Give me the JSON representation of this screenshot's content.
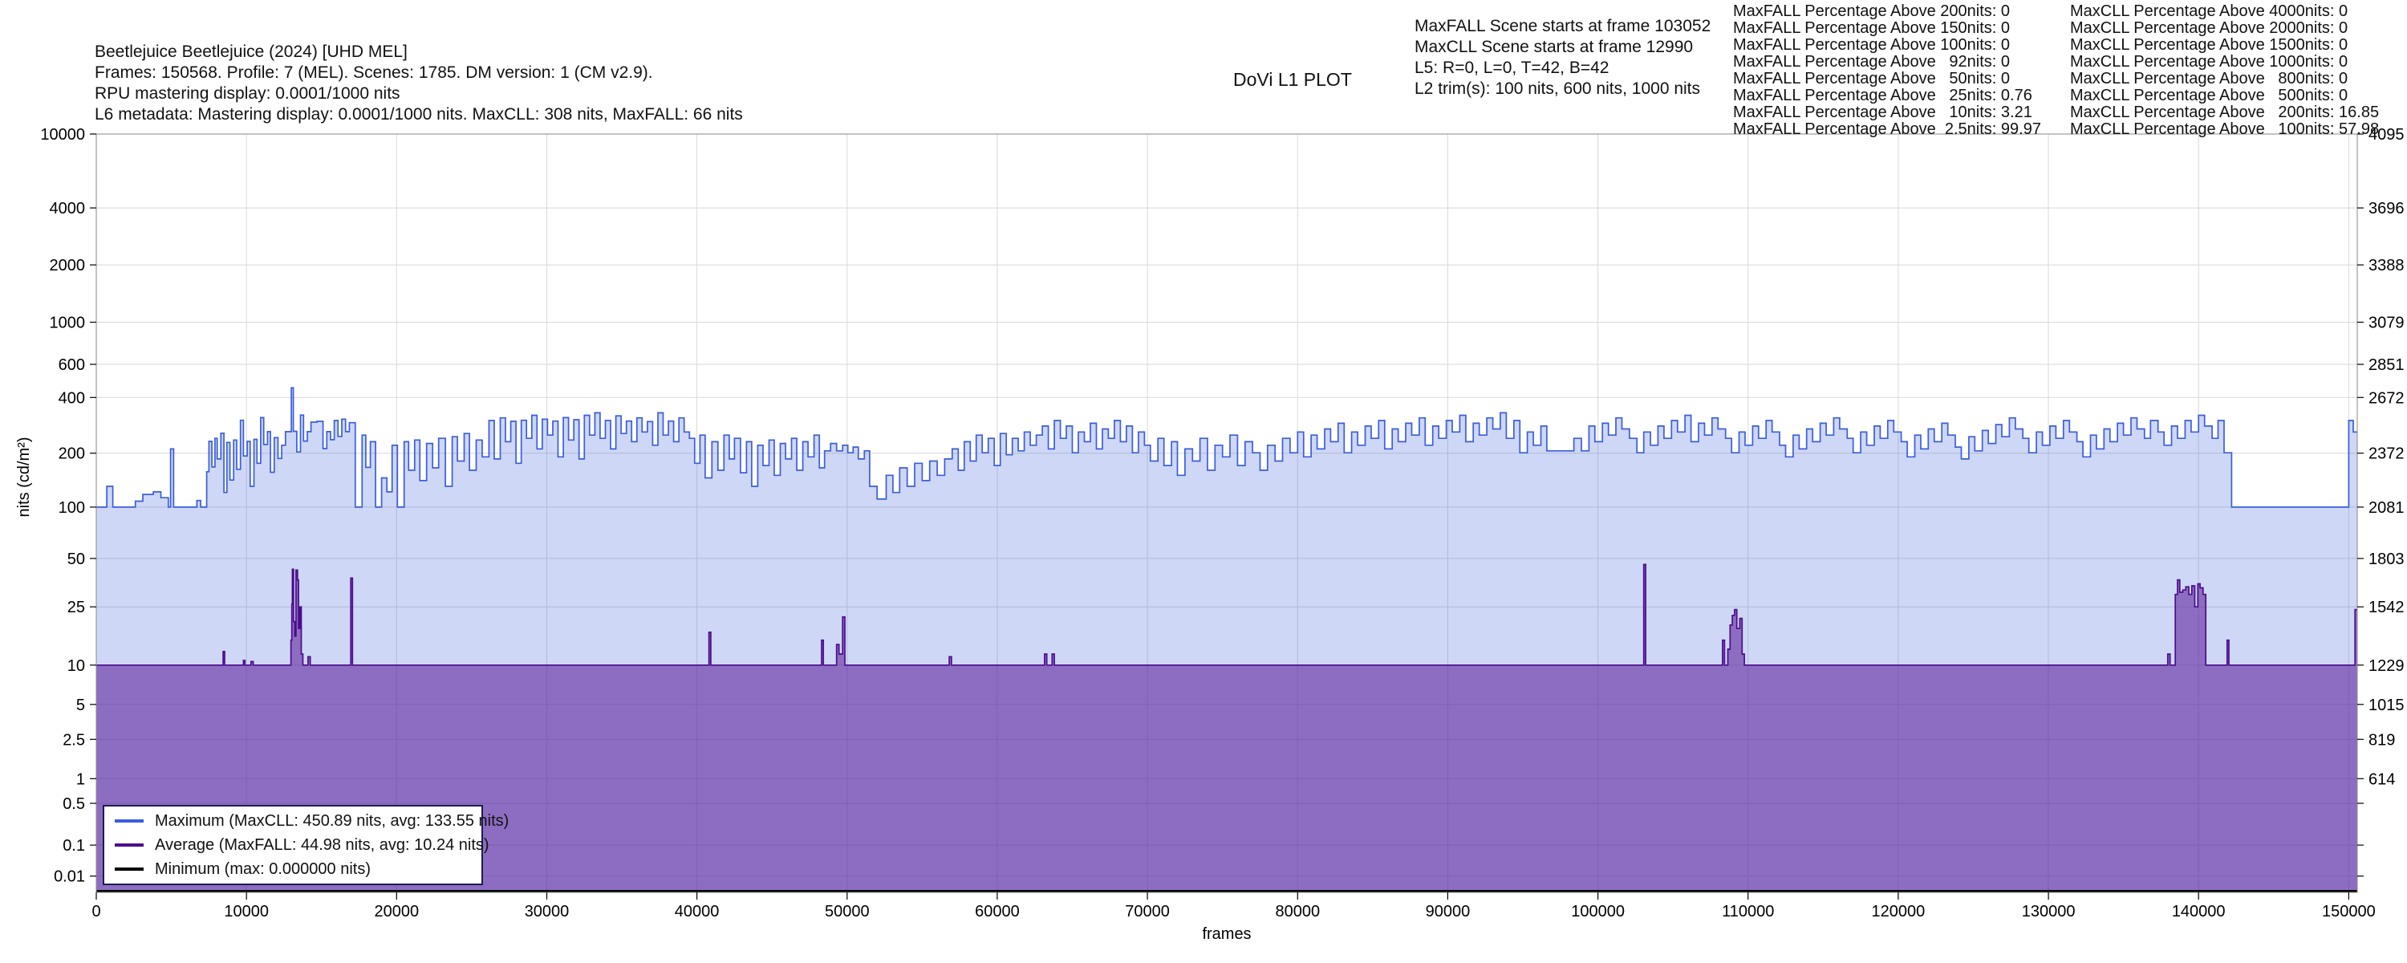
{
  "header": {
    "info_lines": [
      "Beetlejuice Beetlejuice (2024) [UHD MEL]",
      "Frames: 150568. Profile: 7 (MEL). Scenes: 1785. DM version: 1 (CM v2.9).",
      "RPU mastering display: 0.0001/1000 nits",
      "L6 metadata: Mastering display: 0.0001/1000 nits. MaxCLL: 308 nits, MaxFALL: 66 nits"
    ],
    "plot_title": "DoVi L1 PLOT",
    "scene_lines": [
      "MaxFALL Scene starts at frame 103052",
      "MaxCLL Scene starts at frame 12990",
      "L5: R=0, L=0, T=42, B=42",
      "L2 trim(s): 100 nits, 600 nits, 1000 nits"
    ],
    "maxfall_pct_lines": [
      "MaxFALL Percentage Above 200nits: 0",
      "MaxFALL Percentage Above 150nits: 0",
      "MaxFALL Percentage Above 100nits: 0",
      "MaxFALL Percentage Above   92nits: 0",
      "MaxFALL Percentage Above   50nits: 0",
      "MaxFALL Percentage Above   25nits: 0.76",
      "MaxFALL Percentage Above   10nits: 3.21",
      "MaxFALL Percentage Above  2.5nits: 99.97"
    ],
    "maxcll_pct_lines": [
      "MaxCLL Percentage Above 4000nits: 0",
      "MaxCLL Percentage Above 2000nits: 0",
      "MaxCLL Percentage Above 1500nits: 0",
      "MaxCLL Percentage Above 1000nits: 0",
      "MaxCLL Percentage Above   800nits: 0",
      "MaxCLL Percentage Above   500nits: 0",
      "MaxCLL Percentage Above   200nits: 16.85",
      "MaxCLL Percentage Above   100nits: 57.98"
    ]
  },
  "chart_data": {
    "type": "area",
    "title": "DoVi L1 PLOT",
    "xlabel": "frames",
    "ylabel": "nits (cd/m²)",
    "x_range": [
      0,
      150568
    ],
    "x_ticks": [
      0,
      10000,
      20000,
      30000,
      40000,
      50000,
      60000,
      70000,
      80000,
      90000,
      100000,
      110000,
      120000,
      130000,
      140000,
      150000
    ],
    "y_scale": "PQ (ST2084) 12-bit code, linear in code value",
    "y_ticks_nits": [
      10000,
      4000,
      2000,
      1000,
      600,
      400,
      200,
      100,
      50,
      25,
      10,
      5,
      2.5,
      1,
      0.5,
      0.1,
      0.01
    ],
    "y_right_pq_codes": [
      4095,
      3696,
      3388,
      3079,
      2851,
      2672,
      2372,
      2081,
      1803,
      1542,
      1229,
      1015,
      819,
      614
    ],
    "grid": true,
    "legend_position": "lower left",
    "legend": [
      {
        "label": "Maximum (MaxCLL: 450.89 nits, avg: 133.55 nits)",
        "color": "#3B5EDC"
      },
      {
        "label": "Average (MaxFALL: 44.98 nits, avg: 10.24 nits)",
        "color": "#4B0D8C"
      },
      {
        "label": "Minimum (max: 0.000000 nits)",
        "color": "#000000"
      }
    ],
    "colors": {
      "max_line": "#3B5EDC",
      "max_fill": "rgba(61,95,220,0.25)",
      "avg_line": "#4B0D8C",
      "avg_fill": "rgba(88,21,149,0.55)",
      "min_line": "#000000",
      "grid": "#d9d9d9",
      "spine": "#8a8a8a"
    },
    "series": [
      {
        "name": "Maximum",
        "stat": {
          "MaxCLL": 450.89,
          "avg": 133.55
        },
        "steps": [
          0,
          100,
          700,
          131,
          1100,
          100,
          2600,
          108,
          3100,
          118,
          3800,
          122,
          4300,
          113,
          4800,
          100,
          4950,
          211,
          5150,
          100,
          6700,
          109,
          6950,
          100,
          7350,
          158,
          7500,
          232,
          7700,
          168,
          7900,
          241,
          8050,
          186,
          8300,
          257,
          8500,
          121,
          8700,
          229,
          8900,
          142,
          9150,
          236,
          9350,
          163,
          9600,
          302,
          9800,
          193,
          10050,
          232,
          10250,
          131,
          10500,
          238,
          10700,
          176,
          10950,
          312,
          11150,
          223,
          11400,
          262,
          11600,
          157,
          11850,
          243,
          12100,
          187,
          12350,
          221,
          12600,
          262,
          12990,
          450.89,
          13120,
          263,
          13350,
          203,
          13600,
          322,
          13800,
          233,
          14050,
          262,
          14300,
          295,
          14700,
          298,
          15100,
          212,
          15350,
          262,
          15600,
          237,
          15850,
          301,
          16100,
          247,
          16350,
          306,
          16600,
          262,
          16850,
          293,
          17250,
          100,
          17700,
          251,
          17950,
          167,
          18250,
          231,
          18600,
          100,
          19000,
          146,
          19350,
          122,
          19700,
          221,
          20050,
          100,
          20500,
          231,
          20800,
          161,
          21200,
          236,
          21550,
          141,
          22000,
          226,
          22400,
          166,
          22800,
          241,
          23250,
          131,
          23700,
          246,
          24050,
          181,
          24500,
          256,
          24850,
          161,
          25300,
          236,
          25700,
          191,
          26150,
          301,
          26500,
          186,
          26900,
          311,
          27250,
          231,
          27600,
          298,
          27950,
          176,
          28300,
          302,
          28650,
          241,
          29000,
          321,
          29350,
          211,
          29700,
          306,
          30050,
          251,
          30400,
          299,
          30750,
          191,
          31100,
          312,
          31450,
          236,
          31800,
          304,
          32150,
          186,
          32500,
          321,
          32850,
          251,
          33200,
          331,
          33550,
          241,
          33900,
          301,
          34250,
          211,
          34600,
          319,
          34950,
          256,
          35300,
          299,
          35650,
          231,
          36000,
          311,
          36350,
          261,
          36700,
          297,
          37050,
          221,
          37400,
          331,
          37750,
          251,
          38100,
          299,
          38450,
          231,
          38800,
          311,
          39150,
          261,
          39500,
          241,
          39850,
          176,
          40200,
          251,
          40550,
          146,
          41000,
          231,
          41400,
          161,
          41800,
          251,
          42150,
          186,
          42500,
          241,
          42900,
          156,
          43300,
          231,
          43650,
          131,
          44050,
          221,
          44400,
          171,
          44800,
          236,
          45150,
          151,
          45550,
          226,
          45900,
          186,
          46300,
          241,
          46650,
          161,
          47050,
          231,
          47400,
          191,
          47800,
          251,
          48150,
          166,
          48500,
          206,
          48900,
          226,
          49300,
          206,
          49700,
          221,
          50050,
          201,
          50400,
          216,
          50750,
          186,
          51150,
          206,
          51500,
          131,
          52000,
          111,
          52600,
          151,
          53050,
          121,
          53500,
          166,
          54000,
          131,
          54500,
          176,
          55000,
          141,
          55500,
          181,
          56000,
          151,
          56500,
          186,
          57000,
          211,
          57400,
          161,
          57800,
          231,
          58200,
          181,
          58600,
          251,
          59000,
          201,
          59400,
          241,
          59800,
          171,
          60200,
          256,
          60600,
          196,
          61000,
          241,
          61400,
          206,
          61800,
          261,
          62200,
          221,
          62600,
          251,
          63000,
          281,
          63400,
          211,
          63800,
          301,
          64200,
          241,
          64600,
          281,
          65000,
          201,
          65400,
          261,
          65800,
          231,
          66200,
          291,
          66600,
          211,
          67000,
          271,
          67400,
          241,
          67800,
          301,
          68200,
          231,
          68600,
          281,
          69000,
          201,
          69400,
          261,
          69800,
          221,
          70200,
          181,
          70700,
          241,
          71100,
          171,
          71600,
          231,
          72000,
          151,
          72500,
          211,
          73000,
          181,
          73500,
          241,
          74000,
          161,
          74500,
          221,
          75000,
          191,
          75500,
          251,
          76000,
          171,
          76500,
          231,
          77000,
          201,
          77500,
          161,
          78000,
          221,
          78500,
          181,
          79000,
          241,
          79500,
          201,
          80000,
          261,
          80400,
          191,
          80900,
          251,
          81300,
          211,
          81800,
          271,
          82200,
          231,
          82700,
          291,
          83100,
          201,
          83600,
          261,
          84000,
          221,
          84500,
          281,
          84900,
          241,
          85400,
          301,
          85800,
          211,
          86300,
          271,
          86700,
          231,
          87200,
          291,
          87600,
          251,
          88100,
          311,
          88500,
          221,
          89000,
          281,
          89400,
          241,
          89900,
          301,
          90300,
          261,
          90800,
          321,
          91200,
          231,
          91700,
          291,
          92100,
          251,
          92600,
          311,
          93000,
          271,
          93500,
          331,
          93900,
          241,
          94400,
          301,
          94800,
          201,
          95300,
          261,
          95700,
          221,
          96200,
          281,
          96600,
          206,
          97800,
          206,
          98400,
          241,
          98900,
          206,
          99400,
          281,
          99800,
          231,
          100300,
          291,
          100700,
          251,
          101200,
          311,
          101600,
          271,
          102100,
          241,
          102600,
          201,
          103052,
          261,
          103500,
          221,
          104000,
          281,
          104400,
          241,
          104900,
          301,
          105300,
          261,
          105800,
          321,
          106200,
          231,
          106700,
          291,
          107100,
          251,
          107600,
          311,
          108000,
          271,
          108500,
          241,
          108900,
          201,
          109400,
          261,
          109800,
          221,
          110300,
          281,
          110700,
          241,
          111200,
          301,
          111600,
          261,
          112100,
          221,
          112500,
          191,
          113000,
          251,
          113400,
          211,
          113900,
          271,
          114300,
          231,
          114800,
          291,
          115200,
          251,
          115700,
          311,
          116100,
          271,
          116600,
          241,
          117000,
          201,
          117500,
          261,
          117900,
          221,
          118400,
          281,
          118800,
          241,
          119300,
          301,
          119700,
          261,
          120200,
          231,
          120600,
          191,
          121100,
          251,
          121500,
          211,
          122000,
          271,
          122400,
          231,
          122900,
          291,
          123300,
          251,
          123800,
          216,
          124200,
          186,
          124700,
          246,
          125100,
          206,
          125600,
          266,
          126000,
          226,
          126500,
          286,
          126900,
          246,
          127400,
          311,
          127800,
          271,
          128300,
          241,
          128700,
          201,
          129200,
          261,
          129600,
          221,
          130100,
          281,
          130500,
          241,
          131000,
          301,
          131400,
          261,
          131900,
          231,
          132300,
          191,
          132800,
          251,
          133200,
          211,
          133700,
          271,
          134100,
          231,
          134600,
          291,
          135000,
          251,
          135500,
          311,
          135900,
          271,
          136400,
          241,
          136800,
          301,
          137300,
          261,
          137700,
          221,
          138200,
          281,
          138600,
          241,
          139100,
          301,
          139500,
          261,
          140000,
          321,
          140400,
          281,
          140900,
          241,
          141300,
          301,
          141700,
          201,
          142200,
          100,
          149800,
          100,
          150000,
          301,
          150300,
          261,
          150568,
          261
        ]
      },
      {
        "name": "Average",
        "stat": {
          "MaxFALL": 44.98,
          "avg": 10.24
        },
        "steps": [
          0,
          10,
          8400,
          10,
          8450,
          12.5,
          8550,
          10,
          9800,
          10.8,
          9900,
          10,
          10300,
          10.6,
          10450,
          10,
          12900,
          10,
          12960,
          15,
          13020,
          26,
          13060,
          43,
          13140,
          20,
          13220,
          16,
          13300,
          42.5,
          13400,
          37,
          13470,
          18,
          13560,
          25,
          13650,
          12,
          13760,
          10,
          14100,
          11.5,
          14250,
          10,
          16950,
          38,
          17060,
          10,
          40800,
          17,
          40920,
          10,
          48300,
          15,
          48420,
          10,
          49300,
          14,
          49460,
          12,
          49700,
          21.5,
          49850,
          10,
          56800,
          11.5,
          56950,
          10,
          63150,
          12,
          63300,
          10,
          63650,
          12,
          63800,
          10,
          102990,
          10,
          103052,
          46,
          103180,
          10,
          108300,
          15,
          108430,
          10,
          108650,
          13,
          108800,
          19,
          108950,
          22,
          109100,
          24,
          109250,
          18,
          109450,
          21,
          109600,
          12,
          109750,
          10,
          137950,
          12,
          138100,
          10,
          138450,
          30,
          138600,
          37,
          138750,
          31,
          138950,
          32,
          139150,
          33.5,
          139350,
          30,
          139550,
          34,
          139750,
          25,
          139950,
          35,
          140100,
          33,
          140300,
          30,
          140480,
          10,
          141900,
          15,
          142020,
          10,
          150300,
          10,
          150420,
          24,
          150568,
          24
        ]
      },
      {
        "name": "Minimum",
        "stat": {
          "max": 0.0
        },
        "steps": [
          0,
          0,
          150568,
          0
        ]
      }
    ]
  }
}
